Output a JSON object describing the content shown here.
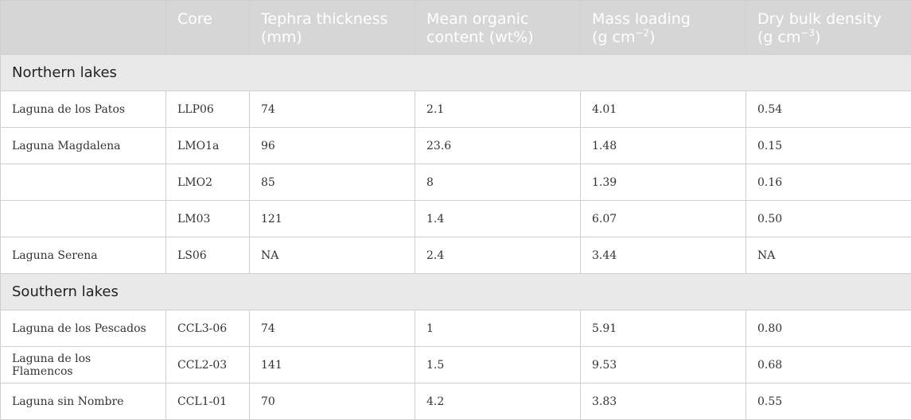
{
  "header": {
    "lake": "",
    "core": "Core",
    "tephra_line1": "Tephra thickness",
    "tephra_line2": "(mm)",
    "organic_line1": "Mean organic",
    "organic_line2": "content (wt%)",
    "mass_line1": "Mass loading",
    "mass_line2_pre": "(g cm",
    "mass_line2_sup": "−2",
    "mass_line2_post": ")",
    "density_line1": "Dry bulk density",
    "density_line2_pre": "(g cm",
    "density_line2_sup": "−3",
    "density_line2_post": ")"
  },
  "groups": [
    {
      "label": "Northern lakes",
      "rows": [
        {
          "lake": "Laguna de los Patos",
          "core": "LLP06",
          "tephra": "74",
          "organic": "2.1",
          "mass": "4.01",
          "density": "0.54"
        },
        {
          "lake": "Laguna Magdalena",
          "core": "LMO1a",
          "tephra": "96",
          "organic": "23.6",
          "mass": "1.48",
          "density": "0.15"
        },
        {
          "lake": "",
          "core": "LMO2",
          "tephra": "85",
          "organic": "8",
          "mass": "1.39",
          "density": "0.16"
        },
        {
          "lake": "",
          "core": "LM03",
          "tephra": "121",
          "organic": "1.4",
          "mass": "6.07",
          "density": "0.50"
        },
        {
          "lake": "Laguna Serena",
          "core": "LS06",
          "tephra": "NA",
          "organic": "2.4",
          "mass": "3.44",
          "density": "NA"
        }
      ]
    },
    {
      "label": "Southern lakes",
      "rows": [
        {
          "lake": "Laguna de los Pescados",
          "core": "CCL3-06",
          "tephra": "74",
          "organic": "1",
          "mass": "5.91",
          "density": "0.80"
        },
        {
          "lake": "Laguna de los Flamencos",
          "core": "CCL2-03",
          "tephra": "141",
          "organic": "1.5",
          "mass": "9.53",
          "density": "0.68"
        },
        {
          "lake": "Laguna sin Nombre",
          "core": "CCL1-01",
          "tephra": "70",
          "organic": "4.2",
          "mass": "3.83",
          "density": "0.55"
        }
      ]
    }
  ]
}
